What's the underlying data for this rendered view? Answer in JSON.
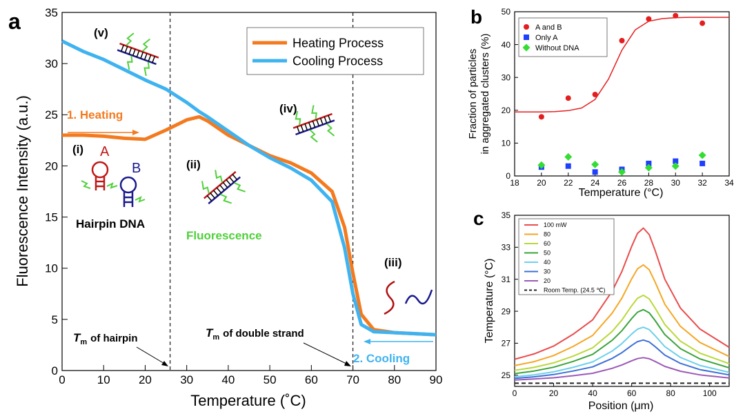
{
  "chart_data": [
    {
      "type": "line",
      "panel": "a",
      "xlabel": "Temperature (˚C)",
      "ylabel": "Fluorescence Intensity (a.u.)",
      "x": [
        0,
        5,
        10,
        15,
        20,
        25,
        30,
        33,
        35,
        40,
        45,
        50,
        55,
        60,
        65,
        68,
        70,
        72,
        75,
        80,
        85,
        90
      ],
      "series": [
        {
          "name": "Heating Process",
          "color": "#f47a1f",
          "values": [
            23,
            23,
            22.9,
            22.7,
            22.6,
            23.5,
            24.5,
            24.8,
            24.4,
            23,
            22,
            21,
            20.3,
            19.3,
            17.5,
            14,
            9.5,
            5.5,
            4,
            3.7,
            3.6,
            3.5
          ]
        },
        {
          "name": "Cooling Process",
          "color": "#3fb3f0",
          "values": [
            32.2,
            31.2,
            30.4,
            29.4,
            28.4,
            27.5,
            26.2,
            25.3,
            24.8,
            23.4,
            22,
            20.8,
            19.8,
            18.6,
            16.5,
            12,
            7.5,
            4.5,
            3.8,
            3.7,
            3.6,
            3.5
          ]
        }
      ],
      "vlines": [
        26,
        70
      ],
      "xlim": [
        0,
        90
      ],
      "xticks": [
        0,
        10,
        20,
        30,
        40,
        50,
        60,
        70,
        80,
        90
      ],
      "ylim": [
        0,
        35
      ],
      "yticks": [
        0,
        5,
        10,
        15,
        20,
        25,
        30,
        35
      ],
      "legend": "upper right",
      "annotations": [
        "(v)",
        "1. Heating",
        "(i)",
        "A",
        "B",
        "Hairpin DNA",
        "(ii)",
        "Fluorescence",
        "(iv)",
        "(iii)",
        "2. Cooling"
      ],
      "tm_labels": [
        {
          "symbol": "T",
          "sub": "m",
          "text": "of hairpin"
        },
        {
          "symbol": "T",
          "sub": "m",
          "text": "of double strand"
        }
      ]
    },
    {
      "type": "scatter",
      "panel": "b",
      "xlabel": "Temperature (°C)",
      "ylabel": [
        "Fraction of particles",
        "in aggregated clusters (%)"
      ],
      "x": [
        20,
        22,
        24,
        26,
        28,
        30,
        32
      ],
      "series": [
        {
          "name": "A and B",
          "color": "#e41e1e",
          "marker": "circle",
          "values": [
            18,
            23.7,
            24.8,
            41.2,
            47.8,
            48.8,
            46.5
          ]
        },
        {
          "name": "Only A",
          "color": "#1f3fff",
          "marker": "square",
          "values": [
            2.7,
            3,
            1.2,
            2,
            3.8,
            4.5,
            3.8
          ]
        },
        {
          "name": "Without DNA",
          "color": "#33dd33",
          "marker": "diamond",
          "values": [
            3.3,
            5.8,
            3.5,
            1.2,
            2.5,
            3,
            6.3
          ]
        },
        {
          "color": "#e41e1e",
          "marker": "line",
          "x": [
            18,
            19,
            20,
            21,
            22,
            23,
            24,
            25,
            26,
            27,
            28,
            29,
            30,
            31,
            32,
            33,
            34
          ],
          "values": [
            19.5,
            19.5,
            19.5,
            19.6,
            19.9,
            20.7,
            23.3,
            29.5,
            38.3,
            44.5,
            47.1,
            47.9,
            48.2,
            48.3,
            48.3,
            48.3,
            48.3
          ]
        }
      ],
      "xlim": [
        18,
        34
      ],
      "xticks": [
        18,
        20,
        22,
        24,
        26,
        28,
        30,
        32,
        34
      ],
      "ylim": [
        0,
        50
      ],
      "yticks": [
        0,
        10,
        20,
        30,
        40,
        50
      ],
      "legend": "upper left"
    },
    {
      "type": "line",
      "panel": "c",
      "xlabel": "Position (μm)",
      "ylabel": "Temperature (°C)",
      "x": [
        0,
        10,
        20,
        30,
        40,
        50,
        55,
        60,
        63,
        66,
        69,
        72,
        77,
        85,
        95,
        110
      ],
      "series": [
        {
          "name": "100 mW",
          "color": "#e94b4b",
          "values": [
            26,
            26.33,
            26.82,
            27.56,
            28.46,
            30.26,
            31.49,
            33.05,
            33.87,
            34.2,
            33.79,
            32.81,
            31,
            29.2,
            27.89,
            26.74
          ]
        },
        {
          "name": "80",
          "color": "#f5a623",
          "values": [
            25.6,
            25.85,
            26.23,
            26.8,
            27.49,
            28.88,
            29.82,
            31.02,
            31.65,
            31.9,
            31.59,
            30.83,
            29.44,
            28.06,
            27.05,
            26.17
          ]
        },
        {
          "name": "60",
          "color": "#b9d83a",
          "values": [
            25.3,
            25.49,
            25.77,
            26.19,
            26.71,
            27.74,
            28.45,
            29.34,
            29.81,
            30,
            29.77,
            29.2,
            28.17,
            27.13,
            26.38,
            25.72
          ]
        },
        {
          "name": "50",
          "color": "#3aa33a",
          "values": [
            25.1,
            25.26,
            25.5,
            25.86,
            26.3,
            27.18,
            27.78,
            28.54,
            28.94,
            29.1,
            28.9,
            28.42,
            27.54,
            26.66,
            26.02,
            25.46
          ]
        },
        {
          "name": "40",
          "color": "#6cd0ea",
          "values": [
            24.9,
            25.02,
            25.21,
            25.49,
            25.83,
            26.51,
            26.98,
            27.57,
            27.88,
            28,
            27.85,
            27.47,
            26.79,
            26.11,
            25.61,
            25.18
          ]
        },
        {
          "name": "30",
          "color": "#3d6fd6",
          "values": [
            24.8,
            24.9,
            25.04,
            25.26,
            25.52,
            26.05,
            26.41,
            26.86,
            27.1,
            27.2,
            27.08,
            26.79,
            26.26,
            25.74,
            25.35,
            25.02
          ]
        },
        {
          "name": "20",
          "color": "#9b59b6",
          "values": [
            24.7,
            24.76,
            24.84,
            24.97,
            25.12,
            25.43,
            25.64,
            25.9,
            26.04,
            26.1,
            26.03,
            25.86,
            25.55,
            25.25,
            25.02,
            24.83
          ]
        },
        {
          "name": "Room Temp. (24.5 ℃)",
          "color": "#222222",
          "dash": true,
          "values": [
            24.5,
            24.5,
            24.5,
            24.5,
            24.5,
            24.5,
            24.5,
            24.5,
            24.5,
            24.5,
            24.5,
            24.5,
            24.5,
            24.5,
            24.5,
            24.5
          ]
        }
      ],
      "xlim": [
        0,
        110
      ],
      "xticks": [
        0,
        20,
        40,
        60,
        80,
        100
      ],
      "ylim": [
        24.3,
        35
      ],
      "yticks": [
        25,
        27,
        29,
        31,
        33,
        35
      ],
      "legend": "upper left"
    }
  ]
}
